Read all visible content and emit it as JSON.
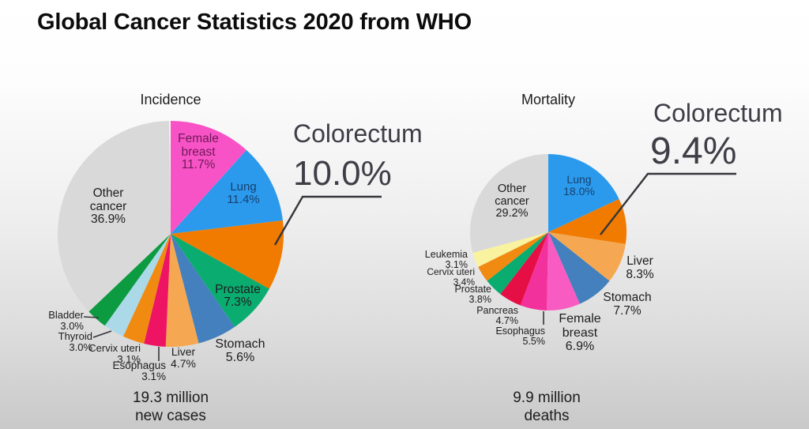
{
  "page_title": "Global Cancer Statistics 2020 from WHO",
  "chart_data": [
    {
      "type": "pie",
      "title": "Incidence",
      "caption_lines": [
        "19.3 million",
        "new cases"
      ],
      "annotation": {
        "label": "Colorectum",
        "value": "10.0%"
      },
      "slices": [
        {
          "label": "Female breast",
          "value": 11.7,
          "color": "#F853C6",
          "label_color": "#6E1A58"
        },
        {
          "label": "Lung",
          "value": 11.4,
          "color": "#2B9AEC",
          "label_color": "#17406F"
        },
        {
          "label": "Colorectum",
          "value": 10.0,
          "color": "#F07B00"
        },
        {
          "label": "Prostate",
          "value": 7.3,
          "color": "#0BAC70"
        },
        {
          "label": "Stomach",
          "value": 5.6,
          "color": "#4480BE"
        },
        {
          "label": "Liver",
          "value": 4.7,
          "color": "#F5A851"
        },
        {
          "label": "Esophagus",
          "value": 3.1,
          "color": "#EE1463"
        },
        {
          "label": "Cervix uteri",
          "value": 3.1,
          "color": "#F08A10"
        },
        {
          "label": "Thyroid",
          "value": 3.0,
          "color": "#ACD9E8"
        },
        {
          "label": "Bladder",
          "value": 3.0,
          "color": "#0C9B40"
        },
        {
          "label": "Other cancer",
          "value": 36.9,
          "color": "#D9D9D9"
        }
      ]
    },
    {
      "type": "pie",
      "title": "Mortality",
      "caption_lines": [
        "9.9 million",
        "deaths"
      ],
      "annotation": {
        "label": "Colorectum",
        "value": "9.4%"
      },
      "slices": [
        {
          "label": "Lung",
          "value": 18.0,
          "color": "#2B9AEC",
          "label_color": "#17406F"
        },
        {
          "label": "Colorectum",
          "value": 9.4,
          "color": "#F07B00"
        },
        {
          "label": "Liver",
          "value": 8.3,
          "color": "#F5A851"
        },
        {
          "label": "Stomach",
          "value": 7.7,
          "color": "#4480BE"
        },
        {
          "label": "Female breast",
          "value": 6.9,
          "color": "#F85CC2"
        },
        {
          "label": "Esophagus",
          "value": 5.5,
          "color": "#F3319C"
        },
        {
          "label": "Pancreas",
          "value": 4.7,
          "color": "#E60F45"
        },
        {
          "label": "Prostate",
          "value": 3.8,
          "color": "#0BAC70"
        },
        {
          "label": "Cervix uteri",
          "value": 3.4,
          "color": "#F08A10"
        },
        {
          "label": "Leukemia",
          "value": 3.1,
          "color": "#F9F3A0"
        },
        {
          "label": "Other cancer",
          "value": 29.2,
          "color": "#D9D9D9"
        }
      ]
    }
  ],
  "line_color": "#35353B",
  "other_gray": "#D9D9D9"
}
